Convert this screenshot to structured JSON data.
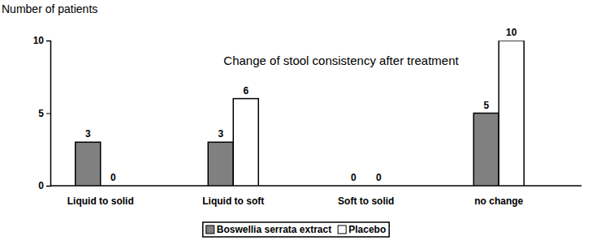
{
  "chart_data": {
    "type": "bar",
    "title": "Change of stool consistency after treatment",
    "y_label": "Number of patients",
    "categories": [
      "Liquid to solid",
      "Liquid to soft",
      "Soft to solid",
      "no change"
    ],
    "series": [
      {
        "name": "Boswellia serrata extract",
        "color": "#808080",
        "values": [
          3,
          3,
          0,
          5
        ]
      },
      {
        "name": "Placebo",
        "color": "#ffffff",
        "values": [
          0,
          6,
          0,
          10
        ]
      }
    ],
    "ylim": [
      0,
      10
    ],
    "yticks": [
      0,
      5,
      10
    ],
    "grid": false,
    "legend": "bottom",
    "data_labels": true
  }
}
